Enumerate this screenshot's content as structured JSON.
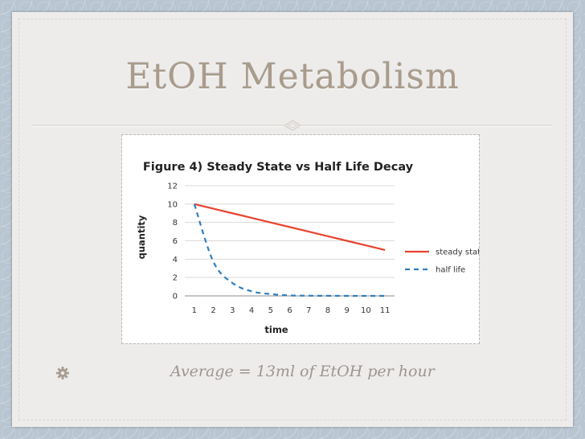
{
  "slide": {
    "title": "EtOH Metabolism",
    "caption": "Average = 13ml of EtOH per hour",
    "colors": {
      "title": "#a99c8c",
      "background": "#b9c6d2",
      "slide": "#eeeceb"
    }
  },
  "chart_data": {
    "type": "line",
    "title": "Figure 4) Steady State vs Half Life Decay",
    "xlabel": "time",
    "ylabel": "quantity",
    "x": [
      1,
      2,
      3,
      4,
      5,
      6,
      7,
      8,
      9,
      10,
      11
    ],
    "xticks": [
      "1",
      "2",
      "3",
      "4",
      "5",
      "6",
      "7",
      "8",
      "9",
      "10",
      "11"
    ],
    "yticks": [
      "0",
      "2",
      "4",
      "6",
      "8",
      "10",
      "12"
    ],
    "ylim": [
      0,
      12
    ],
    "grid": true,
    "legend_position": "right",
    "series": [
      {
        "name": "steady state",
        "color": "#e8432f",
        "style": "solid",
        "values": [
          10,
          9.5,
          9,
          8.5,
          8,
          7.5,
          7,
          6.5,
          6,
          5.5,
          5
        ]
      },
      {
        "name": "half life",
        "color": "#2f7fbf",
        "style": "dashed",
        "values": [
          10,
          3.7,
          1.4,
          0.5,
          0.2,
          0.05,
          0.02,
          0.01,
          0,
          0,
          0
        ]
      }
    ]
  }
}
